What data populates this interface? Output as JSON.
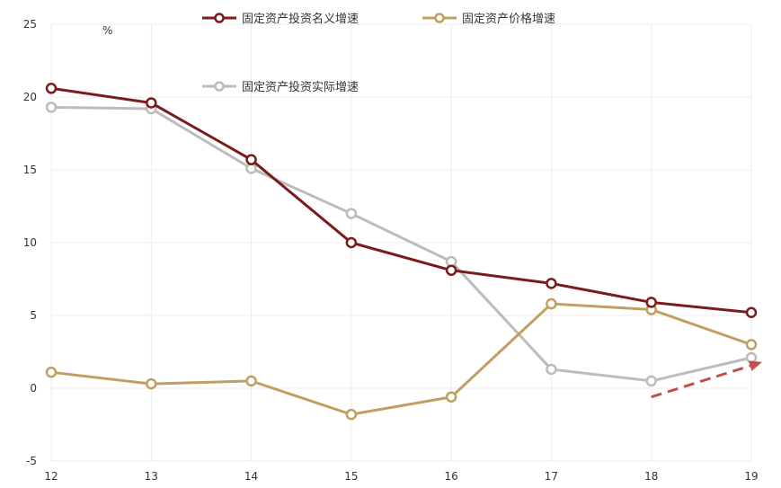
{
  "chart_data": {
    "type": "line",
    "unit_label": "%",
    "categories": [
      "12",
      "13",
      "14",
      "15",
      "16",
      "17",
      "18",
      "19"
    ],
    "ylim": [
      -5,
      25
    ],
    "yticks": [
      -5,
      0,
      5,
      10,
      15,
      20,
      25
    ],
    "grid": true,
    "series": [
      {
        "name": "固定资产投资名义增速",
        "color": "#7b1c1c",
        "values": [
          20.6,
          19.6,
          15.7,
          10.0,
          8.1,
          7.2,
          5.9,
          5.2
        ]
      },
      {
        "name": "固定资产价格增速",
        "color": "#c0a062",
        "values": [
          1.1,
          0.3,
          0.5,
          -1.8,
          -0.6,
          5.8,
          5.4,
          3.0
        ]
      },
      {
        "name": "固定资产投资实际增速",
        "color": "#bdbbbb",
        "values": [
          19.3,
          19.2,
          15.1,
          12.0,
          8.7,
          1.3,
          0.5,
          2.1
        ]
      }
    ],
    "annotation": {
      "type": "dashed-arrow",
      "color": "#c0504d",
      "from": [
        "18",
        -0.6
      ],
      "to": [
        "19",
        1.8
      ]
    }
  }
}
